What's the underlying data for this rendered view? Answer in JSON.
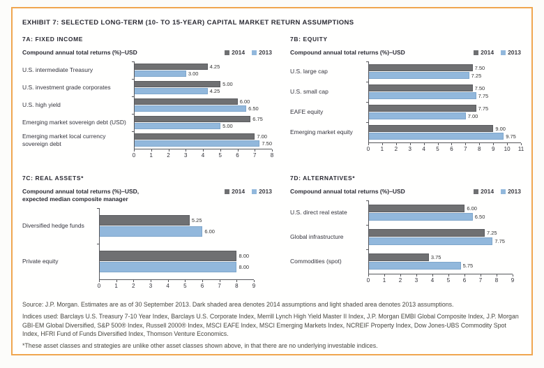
{
  "exhibit_title": "EXHIBIT 7: SELECTED LONG-TERM (10- TO 15-YEAR) CAPITAL MARKET RETURN ASSUMPTIONS",
  "legend": {
    "year_2014": "2014",
    "year_2013": "2013"
  },
  "colors": {
    "panel_border": "#f0a64f",
    "bar_2014": "#6f7072",
    "bar_2013": "#92b8dc",
    "axis": "#55565a"
  },
  "chart_data": [
    {
      "id": "7A",
      "type": "bar",
      "orientation": "horizontal",
      "title": "7A: FIXED INCOME",
      "subtitle_lines": [
        "Compound annual total returns (%)–USD"
      ],
      "legend_entries": [
        "2014",
        "2013"
      ],
      "legend_position": "top-right",
      "axis_range": [
        0,
        8
      ],
      "grid": false,
      "categories": [
        "U.S. intermediate Treasury",
        "U.S. investment grade corporates",
        "U.S. high yield",
        "Emerging market sovereign debt (USD)",
        "Emerging market local currency sovereign debt"
      ],
      "series": [
        {
          "name": "2014",
          "values": [
            4.25,
            5.0,
            6.0,
            6.75,
            7.0
          ]
        },
        {
          "name": "2013",
          "values": [
            3.0,
            4.25,
            6.5,
            5.0,
            7.5
          ]
        }
      ]
    },
    {
      "id": "7B",
      "type": "bar",
      "orientation": "horizontal",
      "title": "7B: EQUITY",
      "subtitle_lines": [
        "Compound annual total returns (%)–USD"
      ],
      "legend_entries": [
        "2014",
        "2013"
      ],
      "legend_position": "top-right",
      "axis_range": [
        0,
        11
      ],
      "grid": false,
      "categories": [
        "U.S. large cap",
        "U.S. small cap",
        "EAFE equity",
        "Emerging market equity"
      ],
      "series": [
        {
          "name": "2014",
          "values": [
            7.5,
            7.5,
            7.75,
            9.0
          ]
        },
        {
          "name": "2013",
          "values": [
            7.25,
            7.75,
            7.0,
            9.75
          ]
        }
      ]
    },
    {
      "id": "7C",
      "type": "bar",
      "orientation": "horizontal",
      "title": "7C: REAL ASSETS*",
      "subtitle_lines": [
        "Compound annual total returns (%)–USD,",
        "expected median composite manager"
      ],
      "legend_entries": [
        "2014",
        "2013"
      ],
      "legend_position": "top-right",
      "axis_range": [
        0,
        9
      ],
      "grid": false,
      "categories": [
        "Diversified hedge funds",
        "Private equity"
      ],
      "series": [
        {
          "name": "2014",
          "values": [
            5.25,
            8.0
          ]
        },
        {
          "name": "2013",
          "values": [
            6.0,
            8.0
          ]
        }
      ]
    },
    {
      "id": "7D",
      "type": "bar",
      "orientation": "horizontal",
      "title": "7D: ALTERNATIVES*",
      "subtitle_lines": [
        "Compound annual total returns (%)–USD"
      ],
      "legend_entries": [
        "2014",
        "2013"
      ],
      "legend_position": "top-right",
      "axis_range": [
        0,
        9
      ],
      "grid": false,
      "categories": [
        "U.S. direct real estate",
        "Global infrastructure",
        "Commodities (spot)"
      ],
      "series": [
        {
          "name": "2014",
          "values": [
            6.0,
            7.25,
            3.75
          ]
        },
        {
          "name": "2013",
          "values": [
            6.5,
            7.75,
            5.75
          ]
        }
      ]
    }
  ],
  "footnotes": [
    "Source: J.P. Morgan. Estimates are as of 30 September 2013. Dark shaded area denotes 2014 assumptions and light shaded area denotes 2013 assumptions.",
    "Indices used: Barclays U.S. Treasury 7-10 Year Index, Barclays U.S. Corporate Index, Merrill Lynch High Yield Master II Index, J.P. Morgan EMBI Global Composite Index, J.P. Morgan GBI-EM Global Diversified, S&P 500® Index, Russell 2000® Index, MSCI EAFE Index, MSCI Emerging Markets Index, NCREIF Property Index, Dow Jones-UBS Commodity Spot Index, HFRI Fund of Funds Diversified Index, Thomson Venture Economics.",
    "*These asset classes and strategies are unlike other asset classes shown above, in that there are no underlying investable indices."
  ]
}
